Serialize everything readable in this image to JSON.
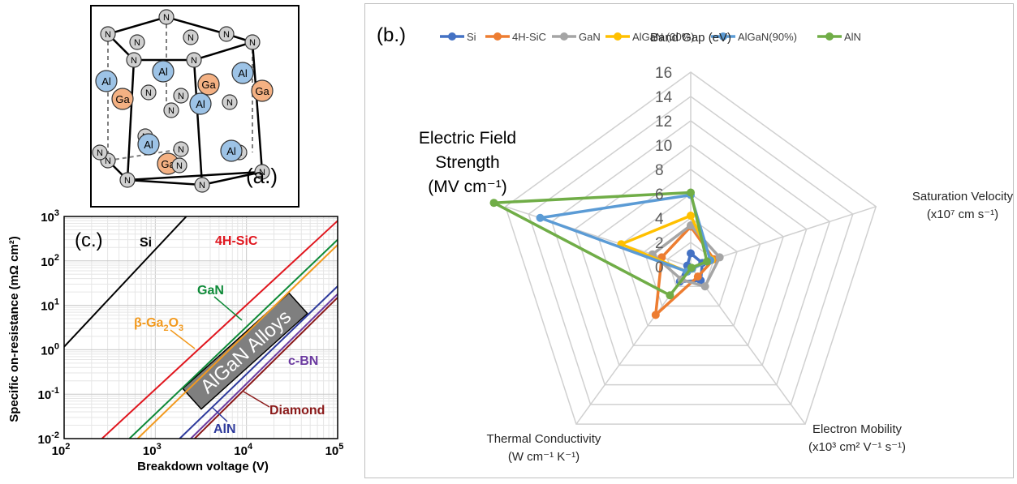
{
  "panel_a": {
    "label": "(a.)",
    "atoms": {
      "al": "Al",
      "ga": "Ga",
      "n": "N"
    },
    "colors": {
      "al": "#9dc3e6",
      "ga": "#f4b183",
      "n": "#d0d0d0"
    }
  },
  "panel_c": {
    "label": "(c.)",
    "band_label": "AlGaN Alloys",
    "annotations": {
      "si": "Si",
      "sic": "4H-SiC",
      "gan": "GaN",
      "ga2o3": "β-Ga",
      "ga2o3_sub1": "2",
      "ga2o3_mid": "O",
      "ga2o3_sub2": "3",
      "cbn": "c-BN",
      "diamond": "Diamond",
      "aln": "AlN"
    }
  },
  "chart_data": [
    {
      "type": "line",
      "panel": "c",
      "xlabel": "Breakdown voltage (V)",
      "ylabel": "Specific on-resistance (mΩ cm²)",
      "log_x": true,
      "log_y": true,
      "xlim": [
        100,
        100000
      ],
      "ylim": [
        0.01,
        1000
      ],
      "x_ticks": [
        {
          "base": "10",
          "exp": "2"
        },
        {
          "base": "10",
          "exp": "3"
        },
        {
          "base": "10",
          "exp": "4"
        },
        {
          "base": "10",
          "exp": "5"
        }
      ],
      "y_ticks": [
        {
          "base": "10",
          "exp": "-2"
        },
        {
          "base": "10",
          "exp": "-1"
        },
        {
          "base": "10",
          "exp": "0"
        },
        {
          "base": "10",
          "exp": "1"
        },
        {
          "base": "10",
          "exp": "2"
        },
        {
          "base": "10",
          "exp": "3"
        }
      ],
      "grid": true,
      "series": [
        {
          "name": "Si",
          "color": "#000000",
          "x": [
            100,
            2190
          ],
          "y": [
            1.17,
            1000
          ]
        },
        {
          "name": "4H-SiC",
          "color": "#e0161e",
          "x": [
            260,
            100000
          ],
          "y": [
            0.01,
            800
          ]
        },
        {
          "name": "GaN",
          "color": "#0e8a38",
          "x": [
            520,
            100000
          ],
          "y": [
            0.01,
            300
          ]
        },
        {
          "name": "β-Ga2O3",
          "color": "#f29a1f",
          "x": [
            640,
            100000
          ],
          "y": [
            0.01,
            230
          ]
        },
        {
          "name": "AlN",
          "color": "#2e3a9c",
          "x": [
            1850,
            100000
          ],
          "y": [
            0.01,
            27
          ]
        },
        {
          "name": "c-BN",
          "color": "#6b3aa0",
          "x": [
            2450,
            100000
          ],
          "y": [
            0.01,
            18
          ]
        },
        {
          "name": "Diamond",
          "color": "#8b1a1a",
          "x": [
            2700,
            100000
          ],
          "y": [
            0.01,
            15
          ]
        }
      ]
    },
    {
      "type": "radar",
      "panel": "b",
      "title": "(b.)",
      "rlim": [
        0,
        16
      ],
      "r_ticks": [
        "0",
        "2",
        "4",
        "6",
        "8",
        "10",
        "12",
        "14",
        "16"
      ],
      "axes": [
        {
          "label": [
            "Band Gap (eV)"
          ]
        },
        {
          "label": [
            "Saturation Velocity",
            "(x10⁷ cm s⁻¹)"
          ]
        },
        {
          "label": [
            "Electron Mobility",
            "(x10³ cm² V⁻¹ s⁻¹)"
          ]
        },
        {
          "label": [
            "Thermal Conductivity",
            "(W cm⁻¹ K⁻¹)"
          ]
        },
        {
          "label": [
            "Electric Field",
            "Strength",
            "(MV cm⁻¹)"
          ]
        }
      ],
      "legend_position": "top",
      "series": [
        {
          "name": "Si",
          "color": "#4472c4",
          "values": [
            1.1,
            1.0,
            1.4,
            1.5,
            0.3
          ]
        },
        {
          "name": "4H-SiC",
          "color": "#ed7d31",
          "values": [
            3.3,
            2.0,
            1.0,
            4.9,
            2.5
          ]
        },
        {
          "name": "GaN",
          "color": "#a5a5a5",
          "values": [
            3.4,
            2.5,
            2.0,
            1.3,
            3.3
          ]
        },
        {
          "name": "AlGaN (30%)",
          "color": "#ffc000",
          "values": [
            4.2,
            1.8,
            0.2,
            0.5,
            6.0
          ]
        },
        {
          "name": "AlGaN(90%)",
          "color": "#5b9bd5",
          "values": [
            5.9,
            1.7,
            0.2,
            0.5,
            13.0
          ]
        },
        {
          "name": "AlN",
          "color": "#70ad47",
          "values": [
            6.1,
            1.4,
            0.1,
            2.9,
            17.0
          ]
        }
      ]
    }
  ]
}
